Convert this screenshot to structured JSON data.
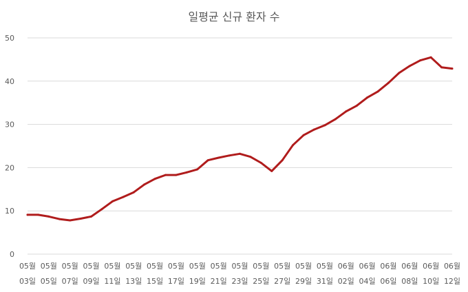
{
  "chart_data": {
    "type": "line",
    "title": "일평균 신규 환자 수",
    "xlabel": "",
    "ylabel": "",
    "ylim": [
      0,
      50
    ],
    "yticks": [
      0,
      10,
      20,
      30,
      40,
      50
    ],
    "grid": true,
    "line_color": "#B01C1C",
    "grid_color": "#D9D9D9",
    "x_labels": [
      {
        "top": "05월",
        "bottom": "03일"
      },
      {
        "top": "05월",
        "bottom": "05일"
      },
      {
        "top": "05월",
        "bottom": "07일"
      },
      {
        "top": "05월",
        "bottom": "09일"
      },
      {
        "top": "05월",
        "bottom": "11일"
      },
      {
        "top": "05월",
        "bottom": "13일"
      },
      {
        "top": "05월",
        "bottom": "15일"
      },
      {
        "top": "05월",
        "bottom": "17일"
      },
      {
        "top": "05월",
        "bottom": "19일"
      },
      {
        "top": "05월",
        "bottom": "21일"
      },
      {
        "top": "05월",
        "bottom": "23일"
      },
      {
        "top": "05월",
        "bottom": "25일"
      },
      {
        "top": "05월",
        "bottom": "27일"
      },
      {
        "top": "05월",
        "bottom": "29일"
      },
      {
        "top": "05월",
        "bottom": "31일"
      },
      {
        "top": "06월",
        "bottom": "02일"
      },
      {
        "top": "06월",
        "bottom": "04일"
      },
      {
        "top": "06월",
        "bottom": "06일"
      },
      {
        "top": "06월",
        "bottom": "08일"
      },
      {
        "top": "06월",
        "bottom": "10일"
      },
      {
        "top": "06월",
        "bottom": "12일"
      }
    ],
    "series": [
      {
        "values": [
          9.1,
          9.1,
          8.7,
          8.1,
          7.8,
          8.2,
          8.7,
          10.4,
          12.2,
          13.2,
          14.3,
          16.1,
          17.4,
          18.3,
          18.3,
          18.9,
          19.6,
          21.7,
          22.3,
          22.8,
          23.2,
          22.5,
          21.1,
          19.2,
          21.7,
          25.2,
          27.5,
          28.8,
          29.8,
          31.2,
          33.0,
          34.3,
          36.2,
          37.6,
          39.6,
          41.9,
          43.5,
          44.8,
          45.5,
          43.2,
          42.9
        ]
      }
    ]
  }
}
